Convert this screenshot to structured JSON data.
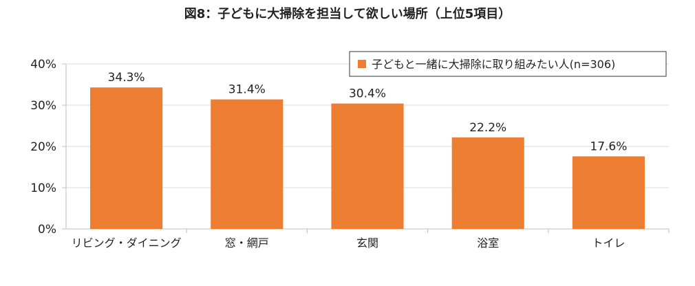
{
  "chart_data": {
    "type": "bar",
    "title": "図8：子どもに大掃除を担当して欲しい場所（上位5項目）",
    "categories": [
      "リビング・ダイニング",
      "窓・網戸",
      "玄関",
      "浴室",
      "トイレ"
    ],
    "series": [
      {
        "name": "子どもと一緒に大掃除に取り組みたい人(n=306)",
        "values": [
          34.3,
          31.4,
          30.4,
          22.2,
          17.6
        ],
        "labels": [
          "34.3%",
          "31.4%",
          "30.4%",
          "22.2%",
          "17.6%"
        ],
        "color": "#ED7D31"
      }
    ],
    "yticks": [
      "0%",
      "10%",
      "20%",
      "30%",
      "40%"
    ],
    "ylim": [
      0,
      40
    ],
    "xlabel": "",
    "ylabel": "",
    "grid": true,
    "legend_position": "top-right"
  }
}
